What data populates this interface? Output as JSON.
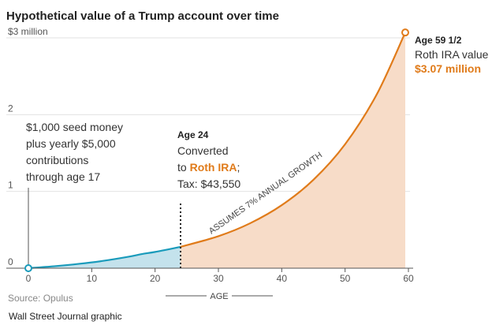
{
  "chart_data": {
    "type": "area",
    "title": "Hypothetical value of a Trump account over time",
    "xlabel": "AGE",
    "ylabel": "",
    "xlim": [
      0,
      60
    ],
    "ylim": [
      0,
      3
    ],
    "x_ticks": [
      "0",
      "10",
      "20",
      "30",
      "40",
      "50",
      "60"
    ],
    "y_ticks": [
      "0",
      "1",
      "2",
      "$3 million"
    ],
    "grid": true,
    "series": [
      {
        "ages": [
          0,
          4,
          8,
          12,
          16,
          18,
          20,
          24
        ],
        "values": [
          0.001,
          0.025,
          0.057,
          0.098,
          0.152,
          0.186,
          0.212,
          0.278
        ],
        "color": "#1a9bbb",
        "fill": "#c4e2ec"
      },
      {
        "ages": [
          24,
          30,
          35,
          40,
          45,
          50,
          55,
          59.5
        ],
        "values": [
          0.278,
          0.417,
          0.585,
          0.821,
          1.151,
          1.614,
          2.264,
          3.07
        ],
        "color": "#e07b1a",
        "fill": "#f7dcc8"
      }
    ],
    "annotations": {
      "seed": [
        "$1,000 seed money",
        "plus yearly $5,000",
        "contributions",
        "through age 17"
      ],
      "conversion_age": "Age 24",
      "conversion_lines": [
        "Converted",
        "to ",
        "Roth IRA",
        ";",
        "Tax: $43,550"
      ],
      "growth": "ASSUMES 7% ANNUAL GROWTH",
      "end_age": "Age 59 1/2",
      "end_label": "Roth IRA value",
      "end_value": "$3.07 million"
    },
    "source": "Source: Opulus",
    "credit": "Wall Street Journal graphic"
  }
}
